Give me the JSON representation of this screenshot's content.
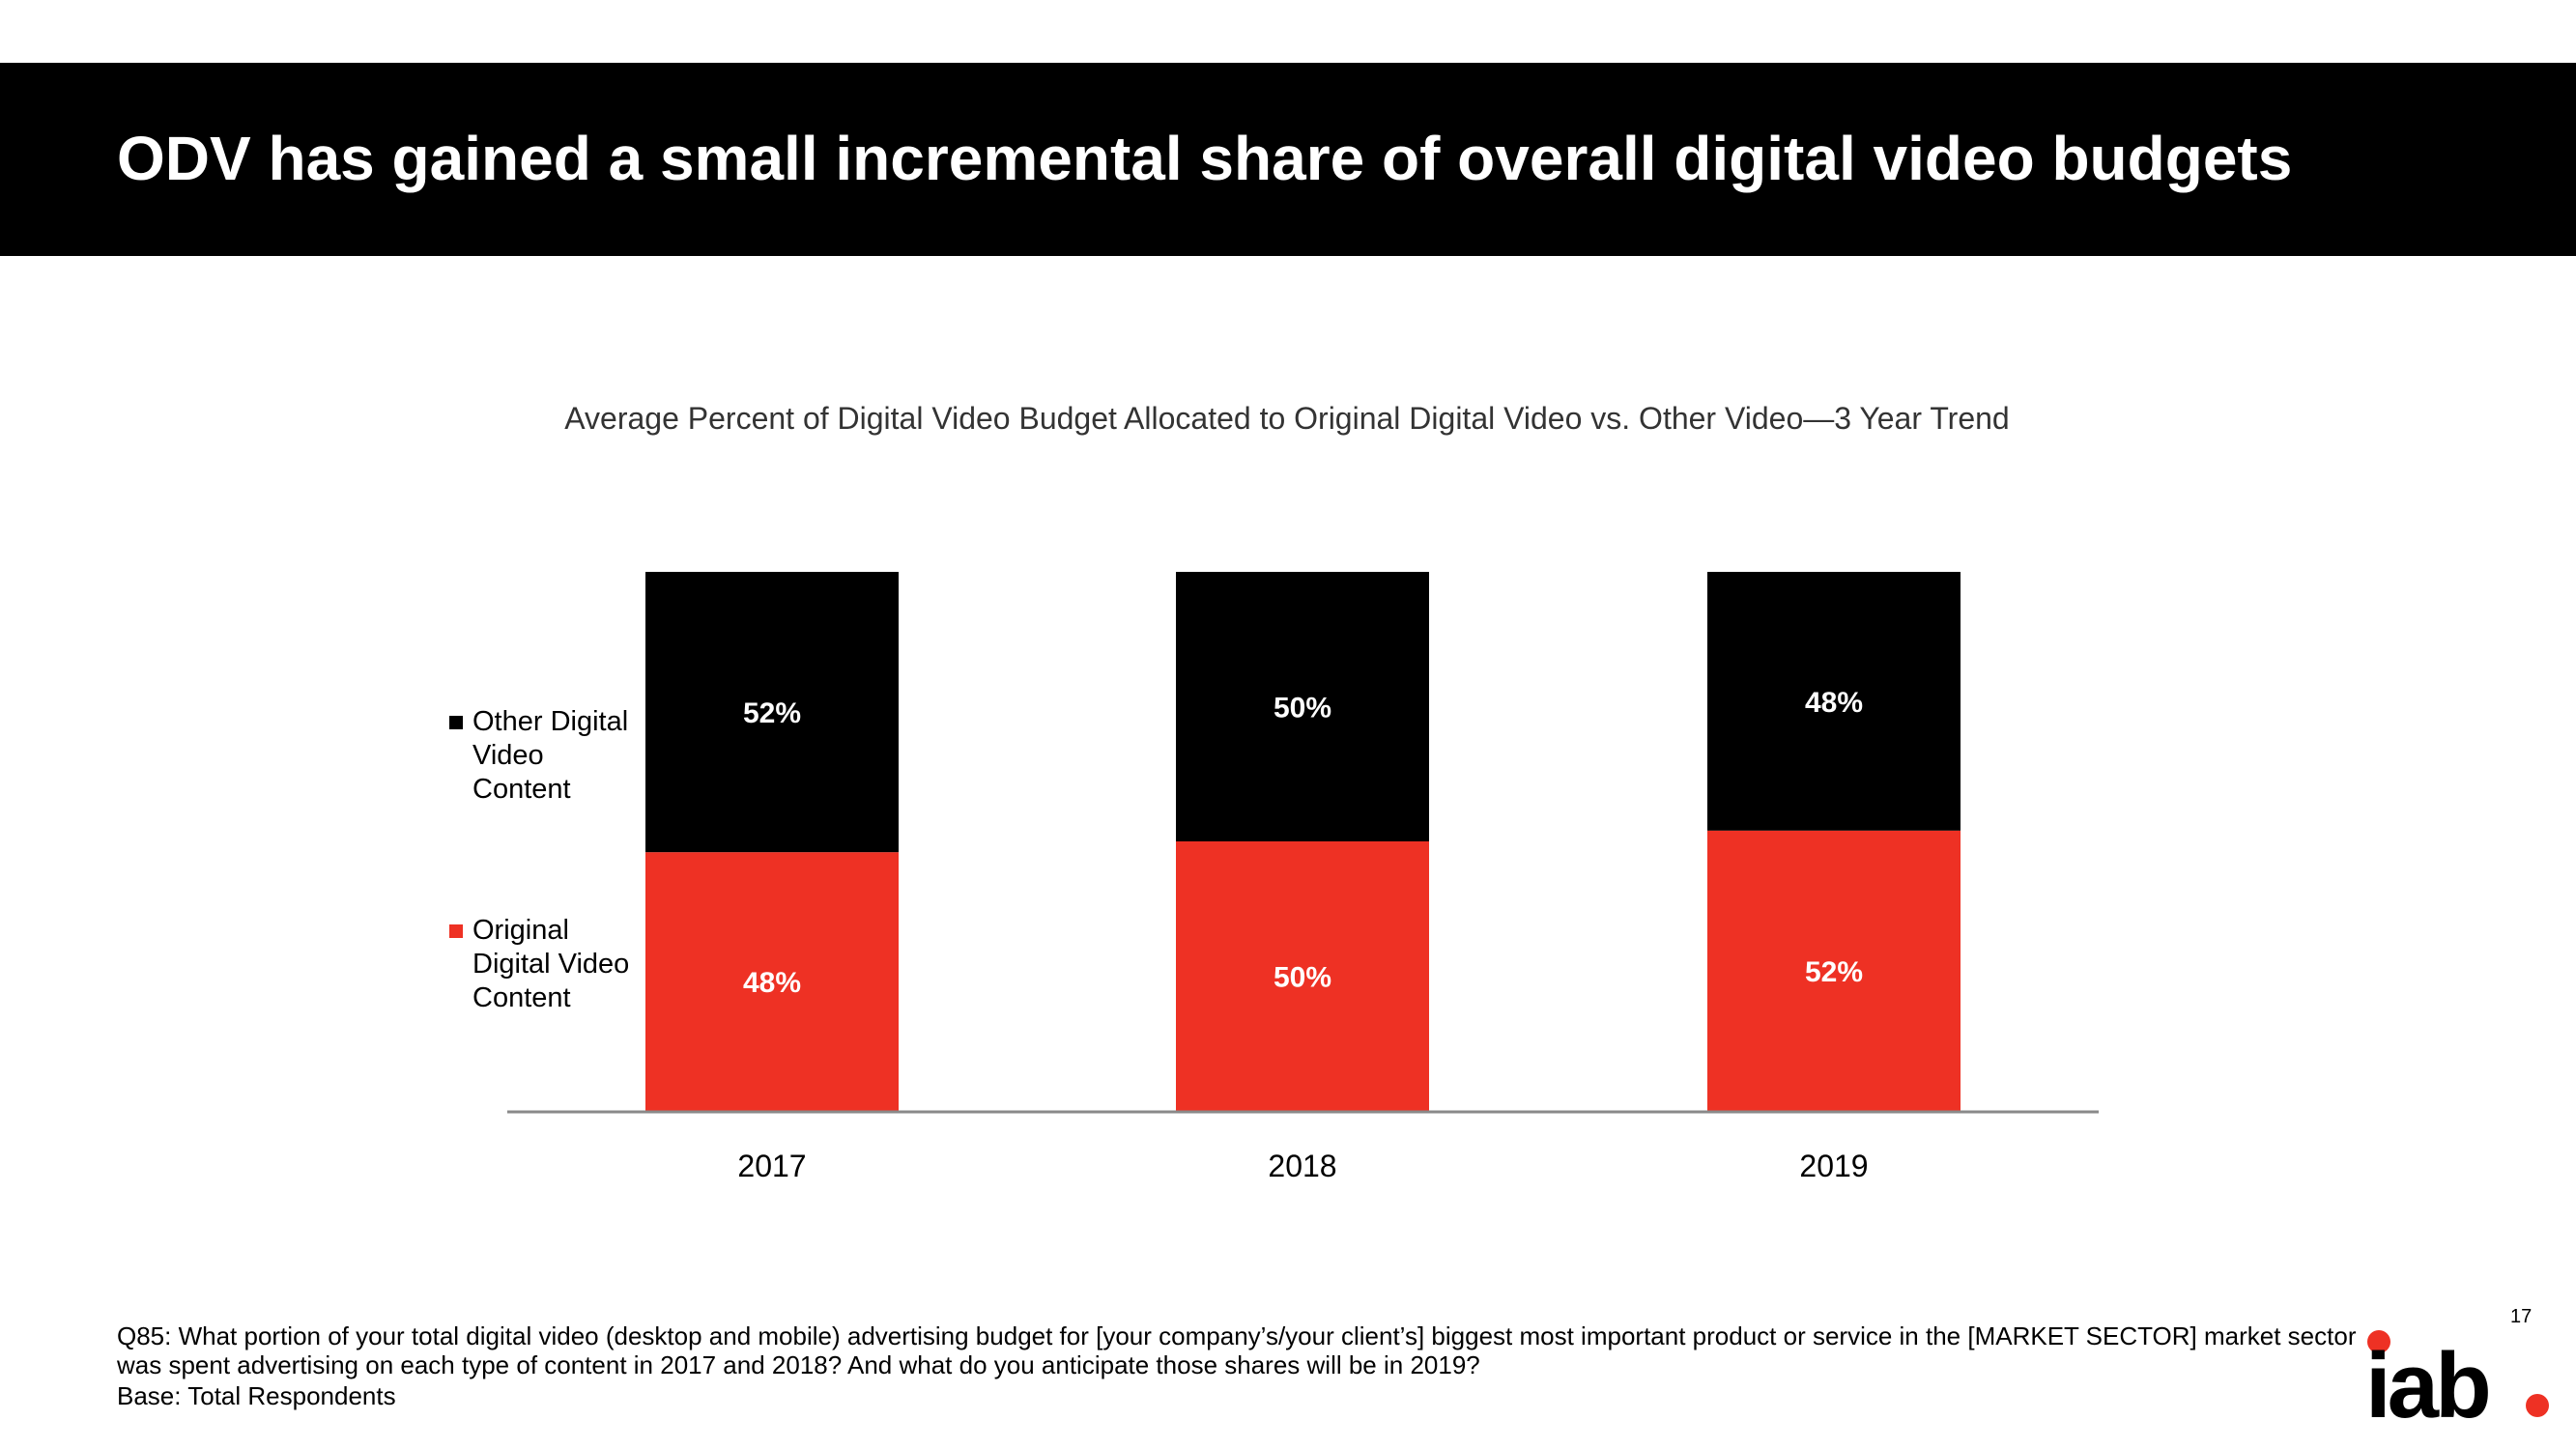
{
  "header": {
    "title": "ODV has gained a small incremental share of overall digital video budgets"
  },
  "chart_data": {
    "type": "bar",
    "stacked": true,
    "title": "Average Percent of Digital Video Budget Allocated to Original Digital Video vs. Other Video—3 Year Trend",
    "xlabel": "",
    "ylabel": "",
    "ylim": [
      0,
      100
    ],
    "grid": false,
    "legend_position": "left",
    "categories": [
      "2017",
      "2018",
      "2019"
    ],
    "series": [
      {
        "name": "Original Digital Video Content",
        "color": "#EE3124",
        "values": [
          48,
          50,
          52
        ],
        "labels": [
          "48%",
          "50%",
          "52%"
        ]
      },
      {
        "name": "Other Digital Video Content",
        "color": "#000000",
        "values": [
          52,
          50,
          48
        ],
        "labels": [
          "52%",
          "50%",
          "48%"
        ]
      }
    ],
    "legend": [
      {
        "name": "Other Digital Video Content",
        "lines": [
          "Other Digital",
          "Video",
          "Content"
        ],
        "color": "#000000"
      },
      {
        "name": "Original Digital Video Content",
        "lines": [
          "Original",
          "Digital Video",
          "Content"
        ],
        "color": "#EE3124"
      }
    ]
  },
  "footer": {
    "question": "Q85:  What portion of your total digital video (desktop and mobile) advertising budget for [your company’s/your client’s] biggest most important product or service in the [MARKET SECTOR] market sector was spent advertising on each type of content in 2017 and 2018? And what do you anticipate those shares will be in 2019?",
    "base": "Base: Total Respondents",
    "page_number": "17",
    "logo_text": "iab",
    "brand_color": "#EE3124"
  }
}
